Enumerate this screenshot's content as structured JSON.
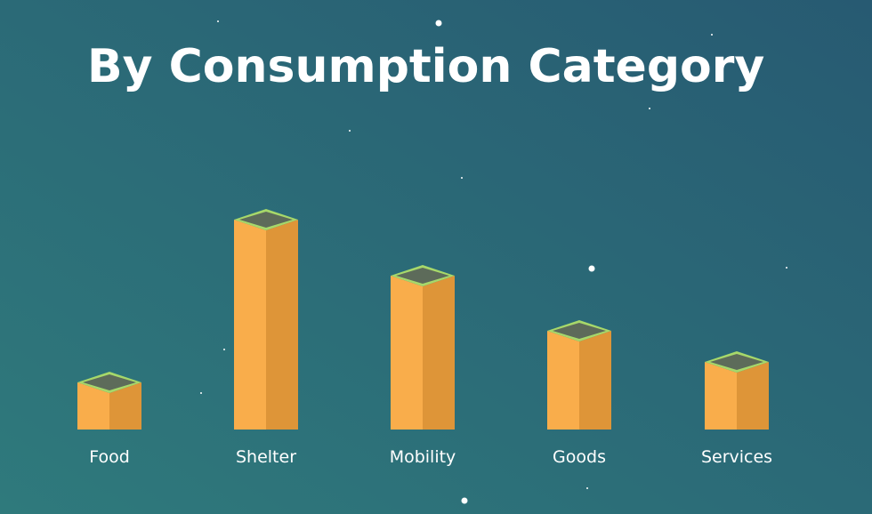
{
  "chart_data": {
    "type": "bar",
    "title": "By Consumption Category",
    "categories": [
      "Food",
      "Shelter",
      "Mobility",
      "Goods",
      "Services"
    ],
    "values": [
      53,
      236,
      173,
      111,
      76
    ],
    "color": "#f9ad4b"
  }
}
